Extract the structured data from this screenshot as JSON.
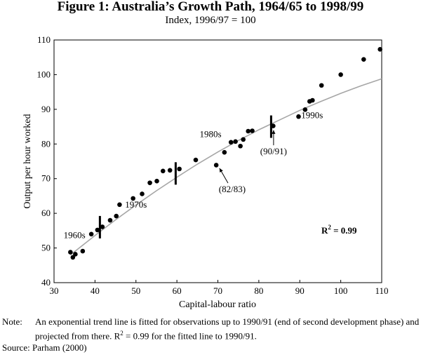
{
  "title": "Figure 1: Australia’s Growth Path, 1964/65 to 1998/99",
  "subtitle": "Index, 1996/97 = 100",
  "chart_data": {
    "type": "scatter",
    "xlabel": "Capital-labour ratio",
    "ylabel": "Output per hour worked",
    "xlim": [
      30,
      110
    ],
    "ylim": [
      40,
      110
    ],
    "xticks": [
      30,
      40,
      50,
      60,
      70,
      80,
      90,
      100,
      110
    ],
    "yticks": [
      40,
      50,
      60,
      70,
      80,
      90,
      100,
      110
    ],
    "grid": false,
    "points": [
      {
        "x": 34.0,
        "y": 48.8
      },
      {
        "x": 34.6,
        "y": 47.3
      },
      {
        "x": 35.2,
        "y": 48.2
      },
      {
        "x": 37.0,
        "y": 49.1
      },
      {
        "x": 39.1,
        "y": 54.0
      },
      {
        "x": 40.6,
        "y": 55.2
      },
      {
        "x": 41.8,
        "y": 56.1
      },
      {
        "x": 43.7,
        "y": 58.0
      },
      {
        "x": 45.2,
        "y": 59.2
      },
      {
        "x": 46.0,
        "y": 62.5
      },
      {
        "x": 49.3,
        "y": 64.3
      },
      {
        "x": 51.5,
        "y": 65.6
      },
      {
        "x": 53.4,
        "y": 68.8
      },
      {
        "x": 55.1,
        "y": 69.3
      },
      {
        "x": 56.6,
        "y": 72.2
      },
      {
        "x": 58.3,
        "y": 72.4
      },
      {
        "x": 60.6,
        "y": 72.8
      },
      {
        "x": 64.6,
        "y": 75.4
      },
      {
        "x": 69.6,
        "y": 73.9
      },
      {
        "x": 71.6,
        "y": 77.6
      },
      {
        "x": 73.2,
        "y": 80.5
      },
      {
        "x": 74.3,
        "y": 80.7
      },
      {
        "x": 75.5,
        "y": 79.4
      },
      {
        "x": 76.2,
        "y": 81.3
      },
      {
        "x": 77.4,
        "y": 83.7
      },
      {
        "x": 78.4,
        "y": 83.8
      },
      {
        "x": 83.5,
        "y": 85.2
      },
      {
        "x": 89.7,
        "y": 87.9
      },
      {
        "x": 91.3,
        "y": 89.9
      },
      {
        "x": 92.4,
        "y": 92.3
      },
      {
        "x": 93.1,
        "y": 92.6
      },
      {
        "x": 95.3,
        "y": 96.9
      },
      {
        "x": 100.0,
        "y": 100.0
      },
      {
        "x": 105.6,
        "y": 104.4
      },
      {
        "x": 109.6,
        "y": 107.3
      }
    ],
    "trend_line": {
      "x": [
        34,
        40,
        45,
        50,
        55,
        60,
        65,
        70,
        75,
        80,
        85,
        90,
        95,
        100,
        105,
        110
      ],
      "y": [
        48.0,
        53.6,
        58.1,
        62.4,
        66.5,
        70.4,
        74.2,
        77.7,
        81.0,
        84.1,
        86.9,
        89.7,
        92.2,
        94.6,
        96.8,
        98.8
      ]
    },
    "phase_markers": [
      {
        "x": 41.2,
        "y": 56.0
      },
      {
        "x": 59.7,
        "y": 71.5
      },
      {
        "x": 83.0,
        "y": 85.0
      }
    ],
    "annotations": [
      {
        "text": "1960s",
        "x": 35.0,
        "y": 52.8
      },
      {
        "text": "1970s",
        "x": 50.0,
        "y": 61.6
      },
      {
        "text": "1980s",
        "x": 68.2,
        "y": 82.0
      },
      {
        "text": "1990s",
        "x": 93.0,
        "y": 87.4
      },
      {
        "text": "(82/83)",
        "x": 73.5,
        "y": 66.1,
        "arrow_to": {
          "x": 70.4,
          "y": 73.0
        }
      },
      {
        "text": "(90/91)",
        "x": 83.6,
        "y": 77.0,
        "arrow_to": {
          "x": 83.6,
          "y": 84.0
        }
      }
    ],
    "r2_label": {
      "text": "R",
      "superscript": "2",
      "suffix": " = 0.99",
      "x": 99.6,
      "y": 54.2
    }
  },
  "note_label": "Note:",
  "note_text_1": "An exponential trend line is fitted for observations up to 1990/91 (end of second development phase) and projected from there. R",
  "note_text_sup": "2",
  "note_text_2": " = 0.99 for the fitted line to 1990/91.",
  "source": "Source: Parham (2000)"
}
